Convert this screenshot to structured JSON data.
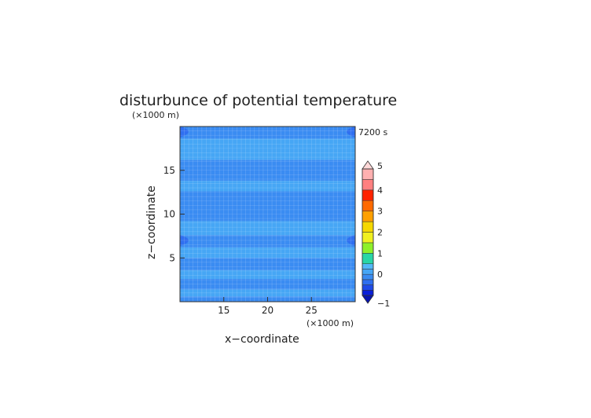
{
  "chart_data": {
    "type": "heatmap",
    "title": "disturbunce of potential temperature",
    "time_label": "7200 s",
    "xlabel": "x−coordinate",
    "ylabel": "z−coordinate",
    "x_unit": "(×1000 m)",
    "y_unit": "(×1000 m)",
    "xlim": [
      10,
      30
    ],
    "ylim": [
      0,
      20
    ],
    "x_ticks": [
      15,
      20,
      25
    ],
    "y_ticks": [
      5,
      10,
      15
    ],
    "colorbar": {
      "ticks": [
        -1,
        0,
        1,
        2,
        3,
        4,
        5
      ],
      "levels": [
        {
          "from": -1.0,
          "to": -0.75,
          "color": "#0a1fd8"
        },
        {
          "from": -0.75,
          "to": -0.5,
          "color": "#1f4ae8"
        },
        {
          "from": -0.5,
          "to": -0.25,
          "color": "#2f6ff0"
        },
        {
          "from": -0.25,
          "to": 0.0,
          "color": "#3a8cf2"
        },
        {
          "from": 0.0,
          "to": 0.25,
          "color": "#46a6f5"
        },
        {
          "from": 0.25,
          "to": 0.5,
          "color": "#52b8f7"
        },
        {
          "from": 0.5,
          "to": 1.0,
          "color": "#28d6a6"
        },
        {
          "from": 1.0,
          "to": 1.5,
          "color": "#8ef02a"
        },
        {
          "from": 1.5,
          "to": 2.0,
          "color": "#f0f020"
        },
        {
          "from": 2.0,
          "to": 2.5,
          "color": "#f5d800"
        },
        {
          "from": 2.5,
          "to": 3.0,
          "color": "#ffa000"
        },
        {
          "from": 3.0,
          "to": 3.5,
          "color": "#ff6a00"
        },
        {
          "from": 3.5,
          "to": 4.0,
          "color": "#ff2200"
        },
        {
          "from": 4.0,
          "to": 4.5,
          "color": "#ff8080"
        },
        {
          "from": 4.5,
          "to": 5.0,
          "color": "#ffb0b0"
        }
      ],
      "over_color": "#ffd8d8",
      "under_color": "#0814b0"
    },
    "field_bands": [
      {
        "z": [
          0.0,
          0.6
        ],
        "value": -0.2
      },
      {
        "z": [
          0.6,
          1.4
        ],
        "value": 0.1
      },
      {
        "z": [
          1.4,
          2.6
        ],
        "value": -0.15
      },
      {
        "z": [
          2.6,
          3.6
        ],
        "value": 0.1
      },
      {
        "z": [
          3.6,
          5.0
        ],
        "value": -0.1
      },
      {
        "z": [
          5.0,
          6.2
        ],
        "value": 0.15
      },
      {
        "z": [
          6.2,
          7.6
        ],
        "value": -0.1
      },
      {
        "z": [
          7.6,
          9.2
        ],
        "value": 0.1
      },
      {
        "z": [
          9.2,
          12.6
        ],
        "value": -0.1
      },
      {
        "z": [
          12.6,
          13.8
        ],
        "value": 0.15
      },
      {
        "z": [
          13.8,
          16.2
        ],
        "value": -0.15
      },
      {
        "z": [
          16.2,
          18.6
        ],
        "value": 0.1
      },
      {
        "z": [
          18.6,
          20.0
        ],
        "value": -0.1
      }
    ]
  }
}
